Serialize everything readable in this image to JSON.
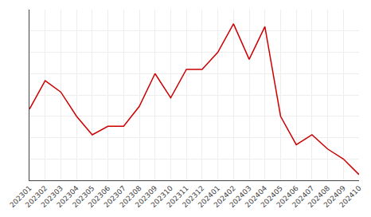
{
  "chart_data": {
    "type": "line",
    "categories": [
      "202301",
      "202302",
      "202303",
      "202304",
      "202305",
      "202306",
      "202307",
      "202308",
      "202309",
      "202310",
      "202311",
      "202312",
      "202401",
      "202402",
      "202403",
      "202404",
      "202405",
      "202406",
      "202407",
      "202408",
      "202409",
      "202410"
    ],
    "values": [
      5,
      7,
      6.2,
      4.5,
      3.2,
      3.8,
      3.8,
      5.2,
      7.5,
      5.8,
      7.8,
      7.8,
      9,
      11,
      8.5,
      10.8,
      4.5,
      2.5,
      3.2,
      2.2,
      1.5,
      0.4
    ],
    "color": "#cc0000",
    "ylim": [
      0,
      12
    ],
    "yticks": [
      0,
      1.5,
      3,
      4.5,
      6,
      7.5,
      9,
      10.5,
      12
    ],
    "grid": true,
    "tick_labels": "x"
  }
}
